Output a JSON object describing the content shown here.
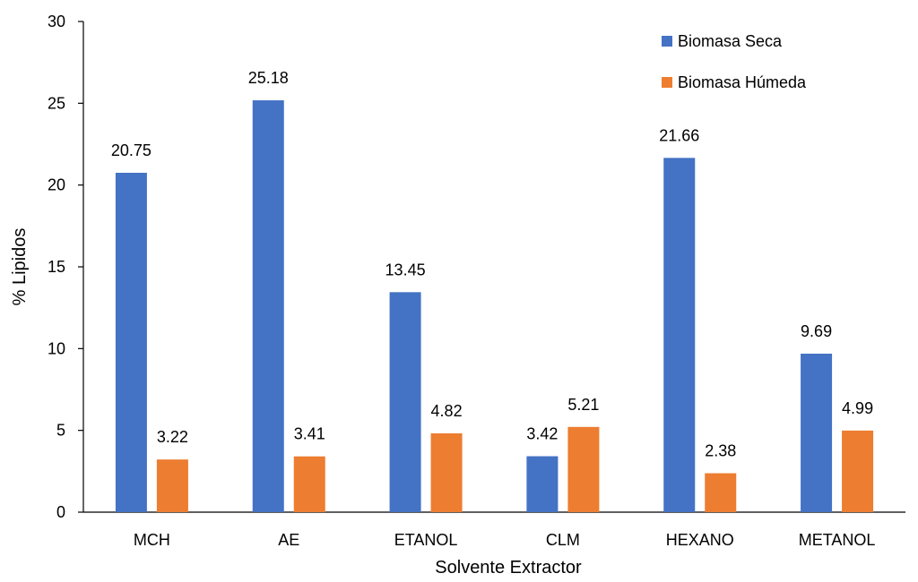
{
  "chart_data": {
    "type": "bar",
    "categories": [
      "MCH",
      "AE",
      "ETANOL",
      "CLM",
      "HEXANO",
      "METANOL"
    ],
    "series": [
      {
        "name": "Biomasa Seca",
        "color": "#4472C4",
        "values": [
          20.75,
          25.18,
          13.45,
          3.42,
          21.66,
          9.69
        ]
      },
      {
        "name": "Biomasa Húmeda",
        "color": "#ED7D31",
        "values": [
          3.22,
          3.41,
          4.82,
          5.21,
          2.38,
          4.99
        ]
      }
    ],
    "data_labels": [
      [
        "20.75",
        "25.18",
        "13.45",
        "3.42",
        "21.66",
        "9.69"
      ],
      [
        "3.22",
        "3.41",
        "4.82",
        "5.21",
        "2.38",
        "4.99"
      ]
    ],
    "y_ticks": [
      "0",
      "5",
      "10",
      "15",
      "20",
      "25",
      "30"
    ],
    "xlabel": "Solvente Extractor",
    "ylabel": "% Lipidos",
    "ylim": [
      0,
      30
    ],
    "grid": false,
    "legend_position": "top-right"
  }
}
